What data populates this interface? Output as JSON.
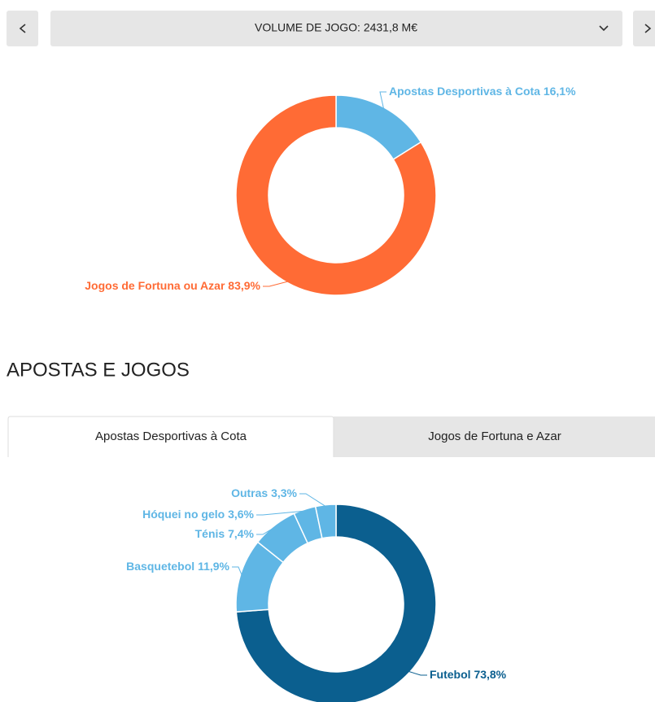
{
  "header": {
    "label": "VOLUME DE JOGO: 2431,8 M€"
  },
  "section": {
    "title": "APOSTAS E JOGOS"
  },
  "tabs": [
    "Apostas Desportivas à Cota",
    "Jogos de Fortuna e Azar"
  ],
  "chart_data": [
    {
      "type": "pie",
      "categories": [
        "Apostas Desportivas à Cota",
        "Jogos de Fortuna ou Azar"
      ],
      "values": [
        16.1,
        83.9
      ],
      "value_labels": [
        "16,1%",
        "83,9%"
      ],
      "colors": [
        "#5fb6e5",
        "#ff6b35"
      ]
    },
    {
      "type": "pie",
      "categories": [
        "Futebol",
        "Basquetebol",
        "Ténis",
        "Hóquei no gelo",
        "Outras"
      ],
      "values": [
        73.8,
        11.9,
        7.4,
        3.6,
        3.3
      ],
      "value_labels": [
        "73,8%",
        "11,9%",
        "7,4%",
        "3,6%",
        "3,3%"
      ],
      "colors": [
        "#0b5f8f",
        "#5fb6e5",
        "#5fb6e5",
        "#5fb6e5",
        "#5fb6e5"
      ]
    }
  ]
}
